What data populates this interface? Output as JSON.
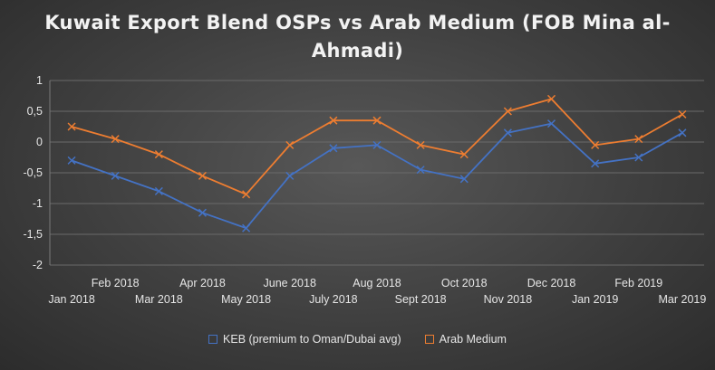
{
  "chart_data": {
    "type": "line",
    "title": "Kuwait Export Blend OSPs vs Arab Medium (FOB Mina al-Ahmadi)",
    "categories": [
      "Jan 2018",
      "Feb 2018",
      "Mar 2018",
      "Apr 2018",
      "May 2018",
      "June 2018",
      "July 2018",
      "Aug 2018",
      "Sept 2018",
      "Oct 2018",
      "Nov 2018",
      "Dec 2018",
      "Jan 2019",
      "Feb 2019",
      "Mar 2019"
    ],
    "y_ticks": [
      "1",
      "0,5",
      "0",
      "-0,5",
      "-1",
      "-1,5",
      "-2"
    ],
    "ylim": [
      -2,
      1
    ],
    "grid": true,
    "legend_position": "bottom",
    "series": [
      {
        "name": "KEB (premium to Oman/Dubai avg)",
        "color": "#4472c4",
        "values": [
          -0.3,
          -0.55,
          -0.8,
          -1.15,
          -1.4,
          -0.55,
          -0.1,
          -0.05,
          -0.45,
          -0.6,
          0.15,
          0.3,
          -0.35,
          -0.25,
          0.15
        ]
      },
      {
        "name": "Arab Medium",
        "color": "#ed7d31",
        "values": [
          0.25,
          0.05,
          -0.2,
          -0.55,
          -0.85,
          -0.05,
          0.35,
          0.35,
          -0.05,
          -0.2,
          0.5,
          0.7,
          -0.05,
          0.05,
          0.45
        ]
      }
    ]
  }
}
